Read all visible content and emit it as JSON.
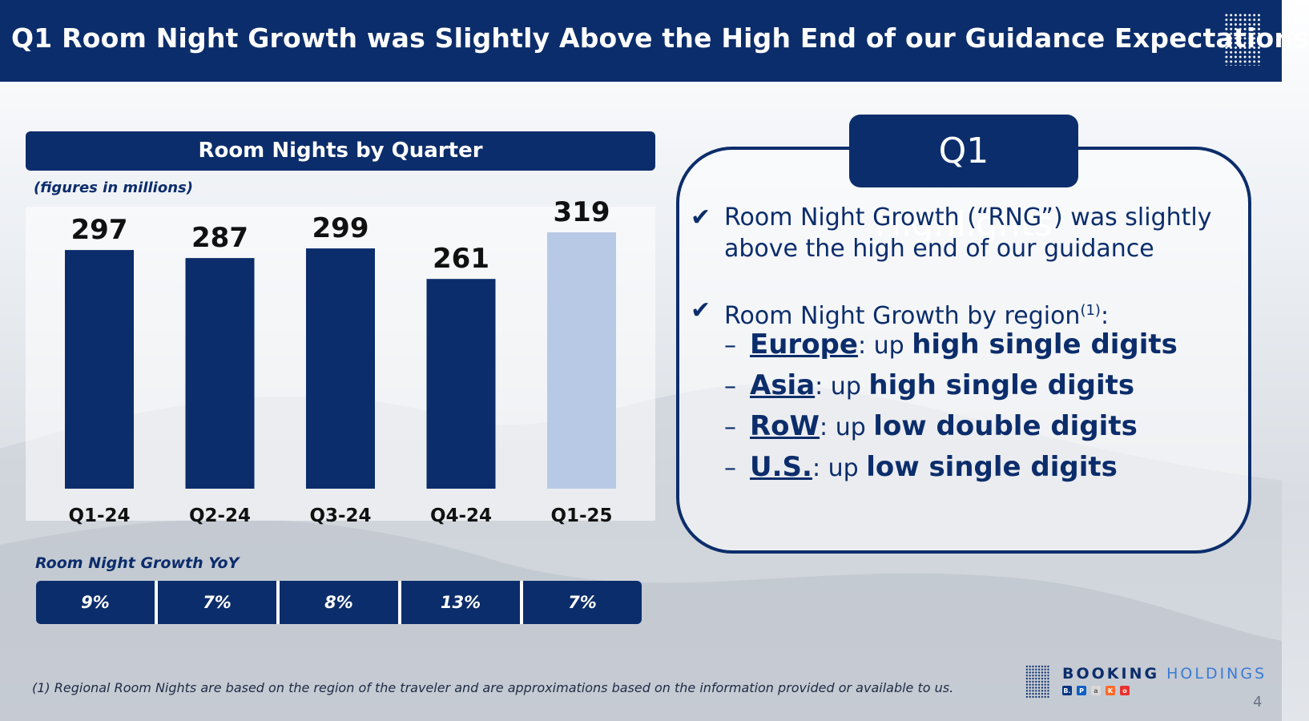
{
  "header": {
    "title": "Q1 Room Night Growth was Slightly Above the High End of our Guidance Expectations"
  },
  "chart_panel": {
    "title": "Room Nights by Quarter",
    "units": "(figures in millions)"
  },
  "chart_data": {
    "type": "bar",
    "title": "Room Nights by Quarter",
    "categories": [
      "Q1-24",
      "Q2-24",
      "Q3-24",
      "Q4-24",
      "Q1-25"
    ],
    "values": [
      297,
      287,
      299,
      261,
      319
    ],
    "data_labels": [
      "297",
      "287",
      "299",
      "261",
      "319"
    ],
    "highlight_index": 4,
    "colors": {
      "bar": "#0c2d6b",
      "bar_highlight": "#b8c9e6"
    },
    "xlabel": "",
    "ylabel": "",
    "grid": false
  },
  "growth": {
    "label": "Room Night Growth YoY",
    "values": [
      "9%",
      "7%",
      "8%",
      "13%",
      "7%"
    ]
  },
  "highlights": {
    "title": "Q1 Highlights",
    "check_icon": "check-icon",
    "item1": "Room Night Growth (“RNG”) was slightly above the high end of our guidance",
    "item2_text": "Room Night Growth by region",
    "item2_sup": "(1)",
    "item2_colon": ":",
    "regions": [
      {
        "dash": "–",
        "name": "Europe",
        "sep": ":",
        "up": " up ",
        "desc": "high single digits"
      },
      {
        "dash": "–",
        "name": "Asia",
        "sep": ":",
        "up": " up ",
        "desc": "high single digits"
      },
      {
        "dash": "–",
        "name": "RoW",
        "sep": ":",
        "up": " up ",
        "desc": "low double digits"
      },
      {
        "dash": "–",
        "name": "U.S.",
        "sep": ":",
        "up": " up ",
        "desc": "low single digits"
      }
    ]
  },
  "footnote": "(1) Regional Room Nights are based on the region of the traveler and are approximations based on the information provided or available to us.",
  "logo": {
    "word1": "BOOKING",
    "word2": "HOLDINGS",
    "brands": [
      {
        "letter": "B.",
        "color": "#003580"
      },
      {
        "letter": "P",
        "color": "#0f5fc4"
      },
      {
        "letter": "a",
        "color": "#d9d9d9"
      },
      {
        "letter": "K",
        "color": "#ff6b2c"
      },
      {
        "letter": "o",
        "color": "#e8322f"
      }
    ]
  },
  "page_number": "4"
}
